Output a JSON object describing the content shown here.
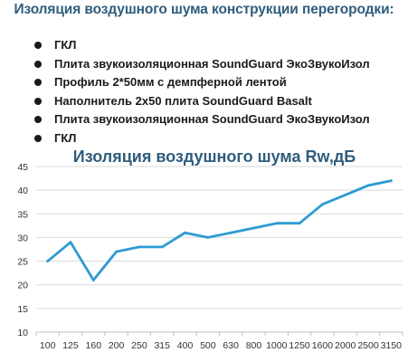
{
  "heading": "Изоляция воздушного шума конструкции перегородки:",
  "layers": [
    "ГКЛ",
    "Плита звукоизоляционная SoundGuard ЭкоЗвукоИзол",
    "Профиль 2*50мм  с демпферной лентой",
    "Наполнитель 2х50 плита SoundGuard Basalt",
    "Плита звукоизоляционная SoundGuard ЭкоЗвукоИзол",
    "ГКЛ"
  ],
  "colors": {
    "heading": "#2f5d7c",
    "chart_title": "#2f5d7c",
    "line": "#2e9bd1",
    "text": "#1a1a1a",
    "grid": "#d9d9d9"
  },
  "chart_data": {
    "type": "line",
    "title": "Изоляция воздушного  шума Rw,дБ",
    "xlabel": "",
    "ylabel": "",
    "categories": [
      "100",
      "125",
      "160",
      "200",
      "250",
      "315",
      "400",
      "500",
      "630",
      "800",
      "1000",
      "1250",
      "1600",
      "2000",
      "2500",
      "3150"
    ],
    "series": [
      {
        "values": [
          25,
          29,
          21,
          27,
          28,
          28,
          31,
          30,
          31,
          32,
          33,
          33,
          37,
          39,
          41,
          42
        ]
      }
    ],
    "ylim": [
      10,
      45
    ],
    "yticks": [
      10,
      15,
      20,
      25,
      30,
      35,
      40,
      45
    ],
    "grid": true,
    "legend": "none"
  }
}
